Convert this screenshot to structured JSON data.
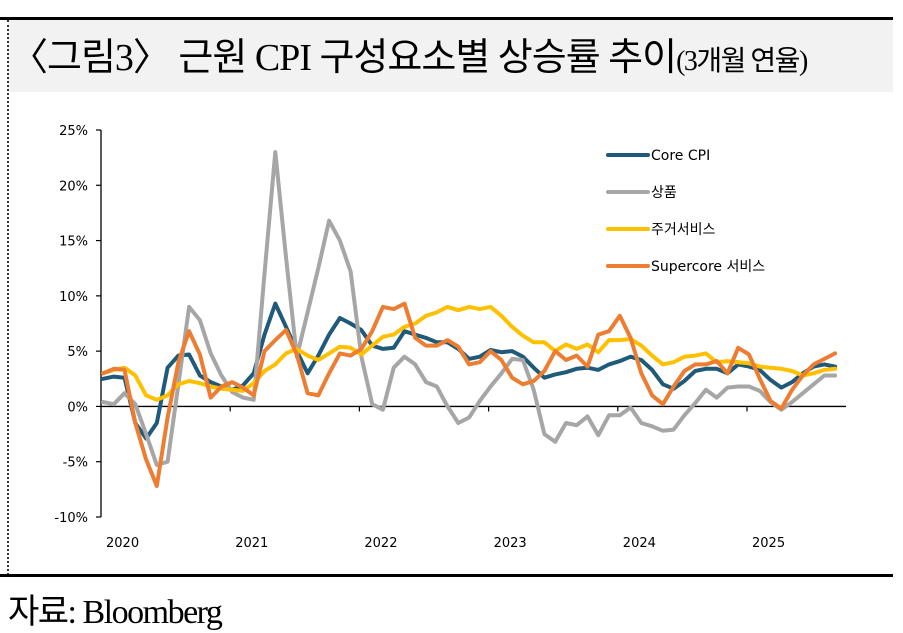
{
  "header": {
    "title_main": "〈그림3〉 근원 CPI 구성요소별 상승률 추이",
    "title_sub": "(3개월 연율)"
  },
  "footer": {
    "source": "자료: Bloomberg"
  },
  "chart_data": {
    "type": "line",
    "title": "〈그림3〉 근원 CPI 구성요소별 상승률 추이(3개월 연율)",
    "xlabel": "",
    "ylabel": "",
    "ylim": [
      -10,
      25
    ],
    "y_ticks": [
      -10,
      -5,
      0,
      5,
      10,
      15,
      20,
      25
    ],
    "y_tick_labels": [
      "-10%",
      "-5%",
      "0%",
      "5%",
      "10%",
      "15%",
      "20%",
      "25%"
    ],
    "x_tick_labels": [
      "2020",
      "2021",
      "2022",
      "2023",
      "2024",
      "2025"
    ],
    "x_start": "2020-01",
    "frequency": "monthly",
    "grid": false,
    "legend_position": "top-right",
    "series": [
      {
        "name": "Core CPI",
        "color": "#1f5a7a",
        "values": [
          2.5,
          2.7,
          2.6,
          -1.5,
          -2.9,
          -1.5,
          3.5,
          4.6,
          4.7,
          2.8,
          2.2,
          1.8,
          1.5,
          1.9,
          3.0,
          6.5,
          9.3,
          7.2,
          5.0,
          3.0,
          4.6,
          6.5,
          8.0,
          7.5,
          6.9,
          5.5,
          5.2,
          5.3,
          6.8,
          6.5,
          6.2,
          5.8,
          5.8,
          5.2,
          4.3,
          4.5,
          5.1,
          4.9,
          5.0,
          4.5,
          3.5,
          2.6,
          2.9,
          3.1,
          3.4,
          3.5,
          3.3,
          3.8,
          4.1,
          4.5,
          4.2,
          3.3,
          2.0,
          1.6,
          2.3,
          3.2,
          3.4,
          3.4,
          3.0,
          3.8,
          3.6,
          3.3,
          2.4,
          1.7,
          2.2,
          3.0,
          3.6,
          3.8,
          3.6
        ],
        "label": "Core CPI"
      },
      {
        "name": "상품",
        "color": "#a6a6a6",
        "values": [
          0.4,
          0.2,
          1.2,
          0.2,
          -2.5,
          -5.3,
          -5.0,
          2.0,
          9.0,
          7.8,
          4.8,
          2.8,
          1.3,
          0.8,
          0.6,
          12.0,
          23.0,
          13.5,
          4.5,
          8.5,
          12.5,
          16.8,
          15.0,
          12.2,
          4.5,
          0.2,
          -0.3,
          3.5,
          4.5,
          3.8,
          2.2,
          1.8,
          0.0,
          -1.5,
          -1.0,
          0.5,
          1.8,
          3.0,
          4.3,
          4.2,
          1.5,
          -2.5,
          -3.2,
          -1.5,
          -1.7,
          -0.9,
          -2.6,
          -0.8,
          -0.8,
          -0.1,
          -1.5,
          -1.8,
          -2.2,
          -2.1,
          -0.8,
          0.3,
          1.5,
          0.8,
          1.7,
          1.8,
          1.8,
          1.4,
          0.4,
          -0.3,
          0.4,
          1.2,
          2.0,
          2.8,
          2.8
        ],
        "label": "상품"
      },
      {
        "name": "주거서비스",
        "color": "#ffc000",
        "values": [
          3.0,
          3.3,
          3.5,
          2.8,
          1.0,
          0.6,
          1.0,
          2.0,
          2.3,
          2.1,
          1.8,
          1.6,
          1.5,
          1.4,
          2.1,
          3.2,
          3.8,
          4.8,
          5.2,
          4.6,
          4.2,
          4.8,
          5.4,
          5.3,
          4.7,
          5.5,
          6.3,
          6.5,
          7.2,
          7.5,
          8.2,
          8.5,
          9.0,
          8.7,
          9.0,
          8.8,
          9.0,
          8.2,
          7.2,
          6.4,
          5.8,
          5.8,
          5.0,
          5.6,
          5.2,
          5.6,
          4.9,
          6.0,
          6.0,
          6.1,
          5.5,
          4.6,
          3.8,
          4.0,
          4.5,
          4.6,
          4.8,
          4.0,
          4.1,
          4.0,
          3.9,
          3.6,
          3.5,
          3.4,
          3.2,
          2.8,
          3.0,
          3.3,
          3.4
        ],
        "label": "주거서비스"
      },
      {
        "name": "Supercore 서비스",
        "color": "#ed7d31",
        "values": [
          3.0,
          3.4,
          3.3,
          -1.5,
          -4.8,
          -7.2,
          -1.0,
          4.0,
          6.8,
          4.7,
          0.8,
          1.8,
          2.2,
          1.7,
          1.0,
          5.0,
          6.0,
          6.9,
          4.7,
          1.2,
          1.0,
          3.0,
          4.8,
          4.6,
          5.2,
          6.8,
          9.0,
          8.8,
          9.3,
          6.2,
          5.5,
          5.5,
          6.0,
          5.4,
          3.8,
          4.0,
          5.0,
          4.2,
          2.6,
          2.0,
          2.3,
          3.2,
          5.0,
          4.2,
          4.6,
          3.6,
          6.5,
          6.8,
          8.2,
          6.2,
          3.0,
          1.0,
          0.2,
          1.8,
          3.2,
          3.8,
          3.8,
          4.1,
          3.0,
          5.3,
          4.7,
          2.5,
          0.5,
          -0.2,
          1.5,
          2.8,
          3.8,
          4.3,
          4.8
        ],
        "label": "Supercore 서비스"
      }
    ]
  }
}
